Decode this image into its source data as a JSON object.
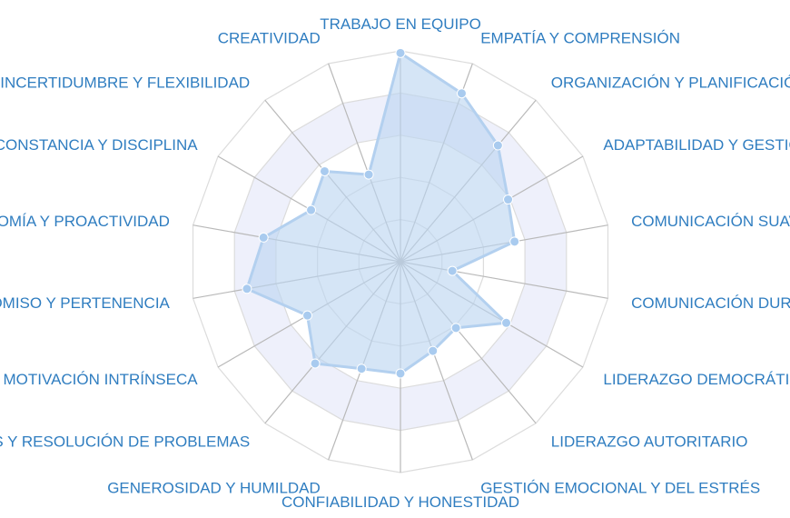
{
  "chart_data": {
    "type": "radar",
    "categories": [
      "TRABAJO EN EQUIPO",
      "EMPATÍA Y COMPRENSIÓN",
      "ORGANIZACIÓN Y PLANIFICACIÓN",
      "ADAPTABILIDAD Y GESTIÓN",
      "COMUNICACIÓN SUAVE",
      "COMUNICACIÓN DURA",
      "LIDERAZGO DEMOCRÁTICO",
      "LIDERAZGO AUTORITARIO",
      "GESTIÓN EMOCIONAL Y DEL ESTRÉS",
      "CONFIABILIDAD Y HONESTIDAD",
      "GENEROSIDAD Y HUMILDAD",
      "ANÁLISIS Y RESOLUCIÓN DE PROBLEMAS",
      "MOTIVACIÓN INTRÍNSECA",
      "COMPROMISO Y PERTENENCIA",
      "AUTONOMÍA Y PROACTIVIDAD",
      "CONSTANCIA Y DISCIPLINA",
      "INCERTIDUMBRE Y FLEXIBILIDAD",
      "CREATIVIDAD"
    ],
    "values": [
      0.99,
      0.85,
      0.72,
      0.59,
      0.55,
      0.25,
      0.58,
      0.41,
      0.45,
      0.53,
      0.54,
      0.63,
      0.51,
      0.74,
      0.66,
      0.49,
      0.56,
      0.44
    ],
    "range": [
      0,
      1
    ],
    "rings": 5,
    "grid": true,
    "legend": "none"
  },
  "colors": {
    "label": "#2f7dc0",
    "area_fill": "#bcd5f1",
    "area_stroke": "#b3d0ef",
    "ring": "#dcdcdc",
    "spoke": "#b9b9b9",
    "band": "#eef0fb"
  }
}
